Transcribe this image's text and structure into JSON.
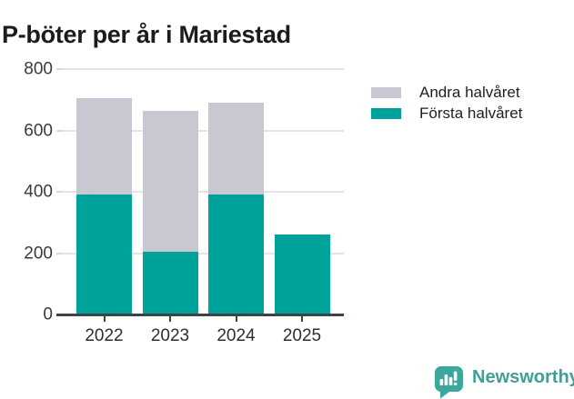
{
  "title": "P-böter per år i Mariestad",
  "chart_data": {
    "type": "bar",
    "stacked": true,
    "title": "P-böter per år i Mariestad",
    "categories": [
      "2022",
      "2023",
      "2024",
      "2025"
    ],
    "series": [
      {
        "name": "Andra halvåret",
        "color": "#c9c7d1",
        "values": [
          315,
          460,
          300,
          0
        ]
      },
      {
        "name": "Första halvåret",
        "color": "#00a39b",
        "values": [
          390,
          205,
          390,
          260
        ]
      }
    ],
    "stack_totals": [
      705,
      665,
      690,
      260
    ],
    "xlabel": "",
    "ylabel": "",
    "ylim": [
      0,
      800
    ],
    "yticks": [
      0,
      200,
      400,
      600,
      800
    ],
    "grid": true,
    "legend_position": "right"
  },
  "colors": {
    "first_half": "#00a39b",
    "second_half": "#c9c7d1",
    "gridline": "#e4e4e4",
    "axis_line": "#3e4444",
    "brand": "#3f9e98"
  },
  "footer": {
    "brand": "Newsworthy",
    "logo_icon": "bar-chart-speech-bubble-icon"
  }
}
